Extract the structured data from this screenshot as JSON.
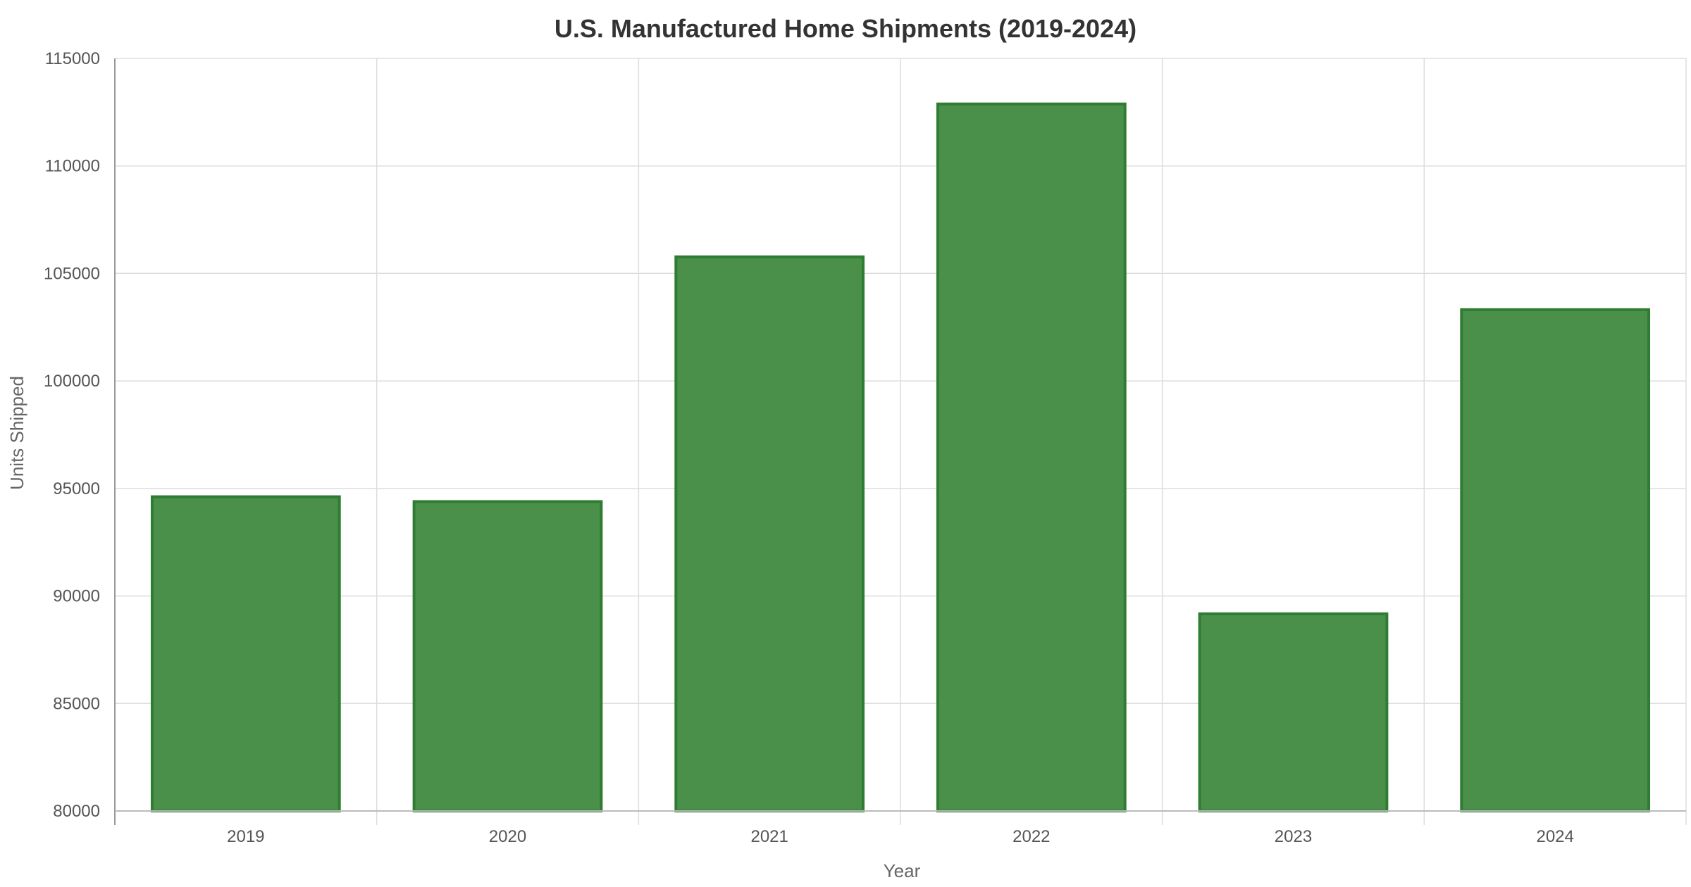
{
  "chart_data": {
    "type": "bar",
    "title": "U.S. Manufactured Home Shipments (2019-2024)",
    "xlabel": "Year",
    "ylabel": "Units Shipped",
    "categories": [
      "2019",
      "2020",
      "2021",
      "2022",
      "2023",
      "2024"
    ],
    "values": [
      94615,
      94390,
      105772,
      112882,
      89169,
      103314
    ],
    "ylim": [
      80000,
      115000
    ],
    "yticks": [
      "80000",
      "85000",
      "90000",
      "95000",
      "100000",
      "105000",
      "110000",
      "115000"
    ],
    "grid": true,
    "legend": "none",
    "colors": {
      "bar_fill": "#4a8f4a",
      "bar_stroke": "#2e7d32",
      "grid": "#dddddd",
      "axis": "#999999"
    }
  }
}
